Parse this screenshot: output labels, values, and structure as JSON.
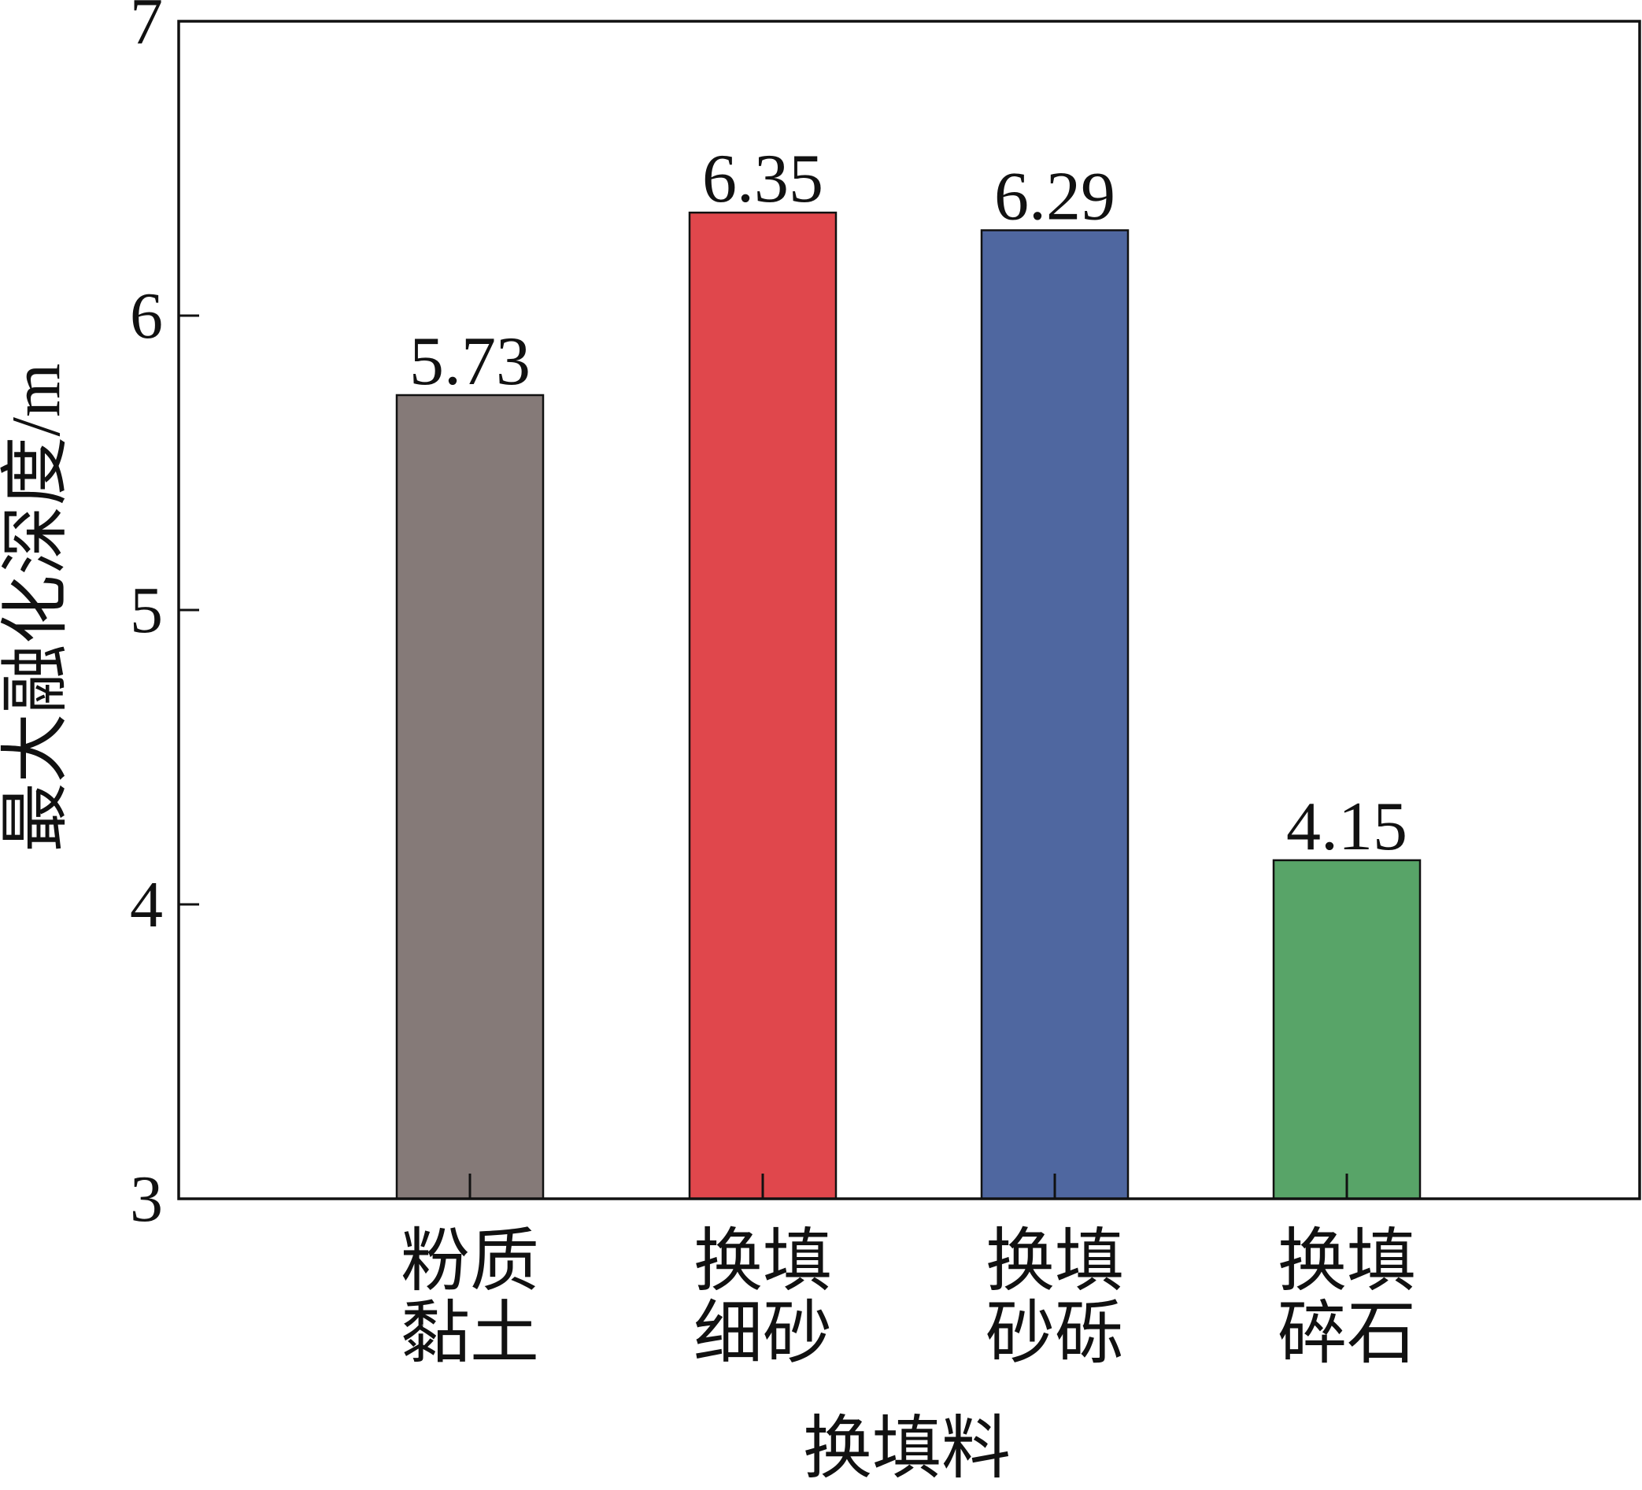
{
  "chart_data": {
    "type": "bar",
    "y_label": "最大融化深度/m",
    "x_label": "换填料",
    "categories": [
      "粉质\n黏土",
      "换填\n细砂",
      "换填\n砂砾",
      "换填\n碎石"
    ],
    "values": [
      5.73,
      6.35,
      6.29,
      4.15
    ],
    "colors": [
      "#857a78",
      "#e0474c",
      "#4f67a0",
      "#58a468"
    ],
    "ylim": [
      3,
      7
    ],
    "yticks": [
      3,
      4,
      5,
      6,
      7
    ]
  }
}
